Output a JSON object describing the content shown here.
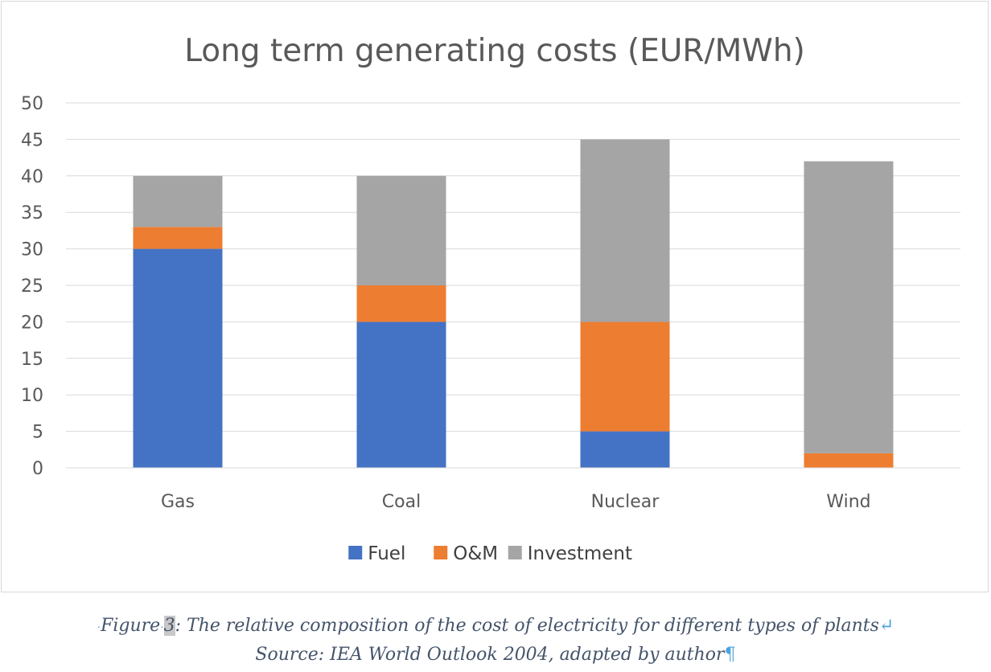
{
  "chart_data": {
    "type": "bar",
    "stacked": true,
    "title": "Long term generating costs (EUR/MWh)",
    "xlabel": "",
    "ylabel": "",
    "categories": [
      "Gas",
      "Coal",
      "Nuclear",
      "Wind"
    ],
    "series": [
      {
        "name": "Fuel",
        "color": "#4472c4",
        "values": [
          30,
          20,
          5,
          0
        ]
      },
      {
        "name": "O&M",
        "color": "#ed7d31",
        "values": [
          3,
          5,
          15,
          2
        ]
      },
      {
        "name": "Investment",
        "color": "#a5a5a5",
        "values": [
          7,
          15,
          25,
          40
        ]
      }
    ],
    "ylim": [
      0,
      50
    ],
    "yticks": [
      "0",
      "5",
      "10",
      "15",
      "20",
      "25",
      "30",
      "35",
      "40",
      "45",
      "50"
    ],
    "grid": true,
    "legend_position": "bottom"
  },
  "caption": {
    "figure_prefix": "Figure",
    "figure_number": "3",
    "figure_text": ": The relative composition of the cost of electricity for different types of plants",
    "source_text": "Source: IEA World Outlook 2004, adapted by author"
  }
}
